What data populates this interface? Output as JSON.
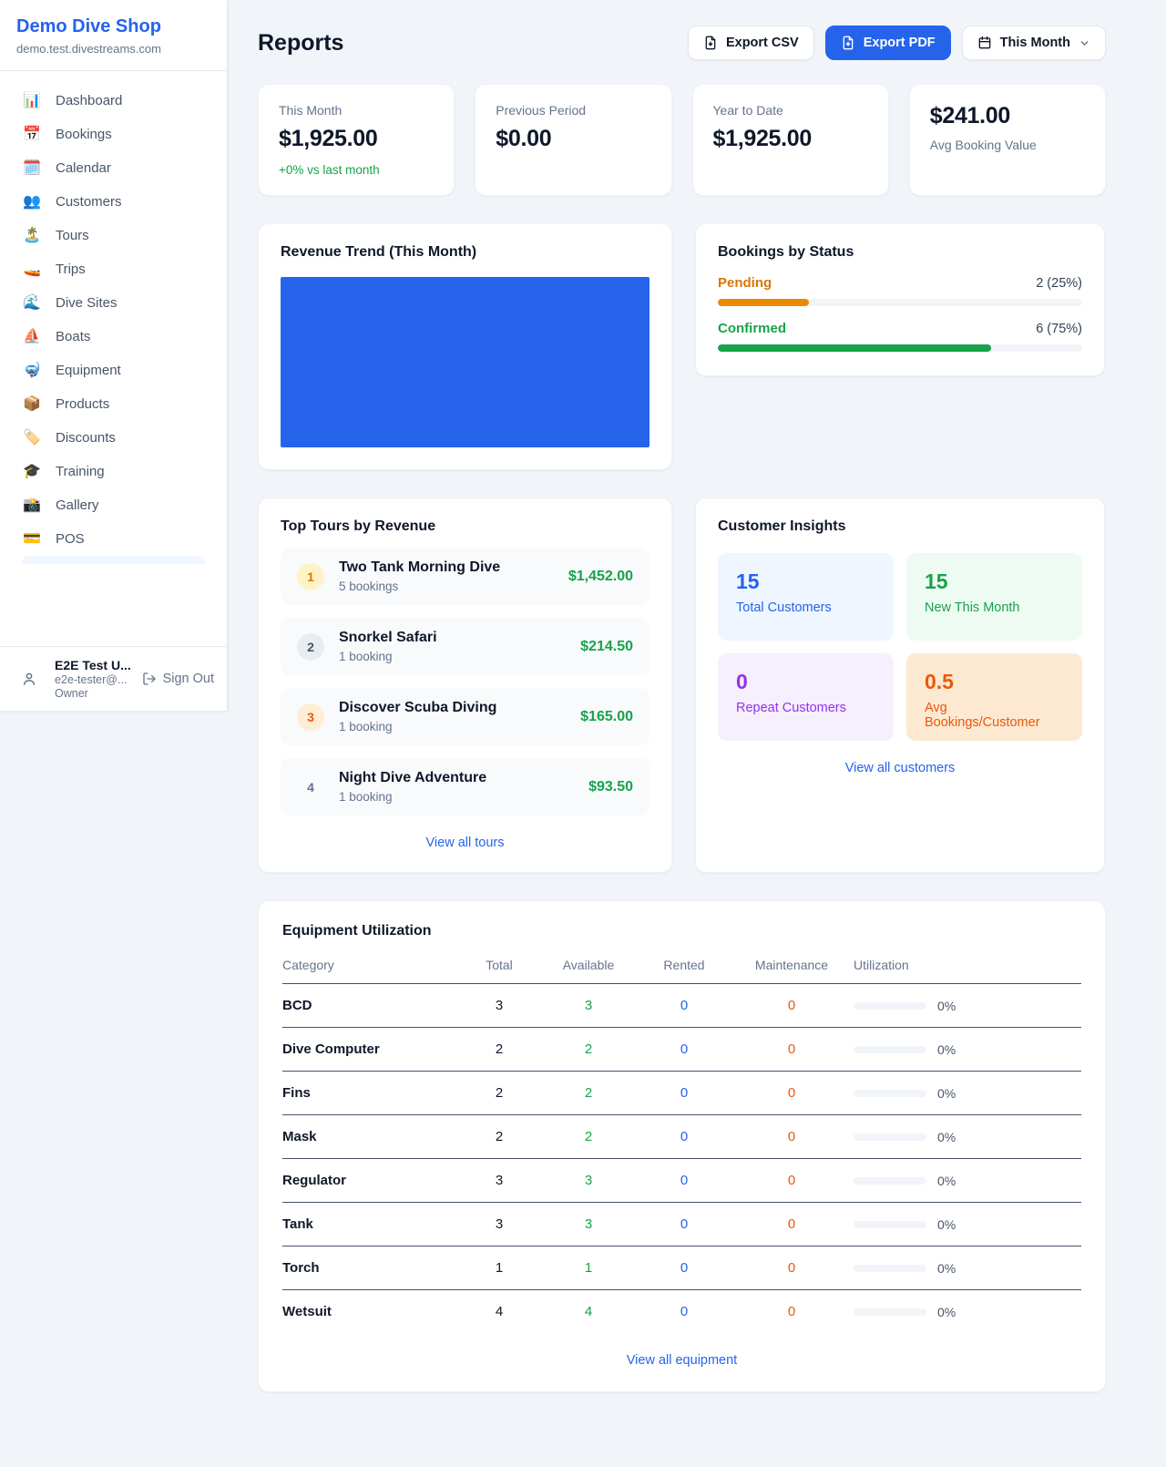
{
  "colors": {
    "accent": "#2563eb",
    "success": "#16a34a",
    "pending": "#d97706",
    "maintenance": "#ea580c",
    "repeat": "#9333ea"
  },
  "sidebar": {
    "shop_name": "Demo Dive Shop",
    "shop_domain": "demo.test.divestreams.com",
    "nav": [
      {
        "label": "Dashboard",
        "icon": "📊"
      },
      {
        "label": "Bookings",
        "icon": "📅"
      },
      {
        "label": "Calendar",
        "icon": "🗓️"
      },
      {
        "label": "Customers",
        "icon": "👥"
      },
      {
        "label": "Tours",
        "icon": "🏝️"
      },
      {
        "label": "Trips",
        "icon": "🚤"
      },
      {
        "label": "Dive Sites",
        "icon": "🌊"
      },
      {
        "label": "Boats",
        "icon": "⛵"
      },
      {
        "label": "Equipment",
        "icon": "🤿"
      },
      {
        "label": "Products",
        "icon": "📦"
      },
      {
        "label": "Discounts",
        "icon": "🏷️"
      },
      {
        "label": "Training",
        "icon": "🎓"
      },
      {
        "label": "Gallery",
        "icon": "📸"
      },
      {
        "label": "POS",
        "icon": "💳"
      }
    ],
    "user": {
      "name": "E2E Test U...",
      "email": "e2e-tester@...",
      "role": "Owner",
      "sign_out": "Sign Out"
    }
  },
  "header": {
    "title": "Reports",
    "export_csv": "Export CSV",
    "export_pdf": "Export PDF",
    "period": "This Month"
  },
  "stats": [
    {
      "label": "This Month",
      "value": "$1,925.00",
      "sub": "+0% vs last month"
    },
    {
      "label": "Previous Period",
      "value": "$0.00"
    },
    {
      "label": "Year to Date",
      "value": "$1,925.00"
    },
    {
      "label": "Avg Booking Value",
      "value": "$241.00"
    }
  ],
  "revenue_trend": {
    "title": "Revenue Trend (This Month)",
    "fill_color": "#2563eb"
  },
  "chart_data": {
    "type": "area",
    "title": "Revenue Trend (This Month)",
    "note": "chart renders as a single solid blue filled block; no axes, ticks or labels visible",
    "fill_color": "#2563eb"
  },
  "bookings_by_status": {
    "title": "Bookings by Status",
    "rows": [
      {
        "label": "Pending",
        "count_text": "2 (25%)",
        "pct": 25
      },
      {
        "label": "Confirmed",
        "count_text": "6 (75%)",
        "pct": 75
      }
    ]
  },
  "top_tours": {
    "title": "Top Tours by Revenue",
    "link": "View all tours",
    "items": [
      {
        "rank": "1",
        "name": "Two Tank Morning Dive",
        "bookings": "5 bookings",
        "revenue": "$1,452.00"
      },
      {
        "rank": "2",
        "name": "Snorkel Safari",
        "bookings": "1 booking",
        "revenue": "$214.50"
      },
      {
        "rank": "3",
        "name": "Discover Scuba Diving",
        "bookings": "1 booking",
        "revenue": "$165.00"
      },
      {
        "rank": "4",
        "name": "Night Dive Adventure",
        "bookings": "1 booking",
        "revenue": "$93.50"
      }
    ]
  },
  "customer_insights": {
    "title": "Customer Insights",
    "link": "View all customers",
    "tiles": [
      {
        "value": "15",
        "label": "Total Customers"
      },
      {
        "value": "15",
        "label": "New This Month"
      },
      {
        "value": "0",
        "label": "Repeat Customers"
      },
      {
        "value": "0.5",
        "label": "Avg Bookings/Customer"
      }
    ]
  },
  "equipment": {
    "title": "Equipment Utilization",
    "link": "View all equipment",
    "columns": [
      "Category",
      "Total",
      "Available",
      "Rented",
      "Maintenance",
      "Utilization"
    ],
    "rows": [
      {
        "category": "BCD",
        "total": "3",
        "available": "3",
        "rented": "0",
        "maintenance": "0",
        "utilization": "0%"
      },
      {
        "category": "Dive Computer",
        "total": "2",
        "available": "2",
        "rented": "0",
        "maintenance": "0",
        "utilization": "0%"
      },
      {
        "category": "Fins",
        "total": "2",
        "available": "2",
        "rented": "0",
        "maintenance": "0",
        "utilization": "0%"
      },
      {
        "category": "Mask",
        "total": "2",
        "available": "2",
        "rented": "0",
        "maintenance": "0",
        "utilization": "0%"
      },
      {
        "category": "Regulator",
        "total": "3",
        "available": "3",
        "rented": "0",
        "maintenance": "0",
        "utilization": "0%"
      },
      {
        "category": "Tank",
        "total": "3",
        "available": "3",
        "rented": "0",
        "maintenance": "0",
        "utilization": "0%"
      },
      {
        "category": "Torch",
        "total": "1",
        "available": "1",
        "rented": "0",
        "maintenance": "0",
        "utilization": "0%"
      },
      {
        "category": "Wetsuit",
        "total": "4",
        "available": "4",
        "rented": "0",
        "maintenance": "0",
        "utilization": "0%"
      }
    ]
  }
}
